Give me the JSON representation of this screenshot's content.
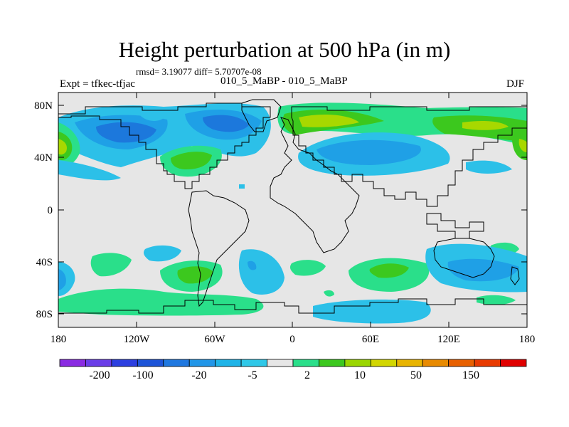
{
  "title": "Height perturbation at 500 hPa (in m)",
  "stats": "rmsd= 3.19077 diff= 5.70707e-08",
  "expt_label": "Expt = tfkec-tfjac",
  "subtitle": "010_5_MaBP - 010_5_MaBP",
  "season": "DJF",
  "lat_ticks": [
    "80N",
    "40N",
    "0",
    "40S",
    "80S"
  ],
  "lon_ticks": [
    "180",
    "120W",
    "60W",
    "0",
    "60E",
    "120E",
    "180"
  ],
  "colorbar": {
    "colors": [
      "#8a2be2",
      "#6a3de8",
      "#2c3fe0",
      "#1d54d8",
      "#1f78e0",
      "#2196e8",
      "#1fb4e8",
      "#2fc8e8",
      "#e6e6e6",
      "#2adf8a",
      "#3cc81e",
      "#9ad600",
      "#d2d600",
      "#e8b400",
      "#e88a00",
      "#e86000",
      "#e83a00",
      "#e00000"
    ],
    "labels": [
      "-200",
      "-100",
      "-20",
      "-5",
      "2",
      "10",
      "50",
      "150"
    ]
  },
  "legend_colors": {
    "land_background": "#e6e6e6",
    "light_blue": "#2cc0e8",
    "mid_blue": "#1fa0e6",
    "dark_blue": "#1c78dc",
    "green": "#2adf8a",
    "mid_green": "#3cc81e",
    "yellow_green": "#a8d800",
    "coastline": "#000000"
  }
}
